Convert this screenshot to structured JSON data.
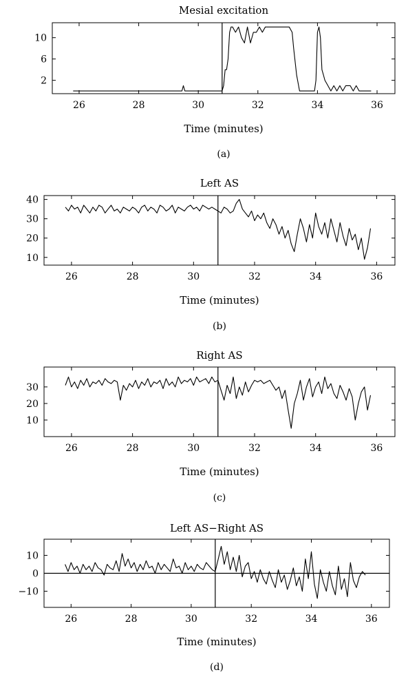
{
  "chart_data": [
    {
      "type": "line",
      "panel_label": "(a)",
      "title": "Mesial excitation",
      "xlabel": "Time (minutes)",
      "ylabel": "",
      "xlim": [
        25.1,
        36.6
      ],
      "ylim": [
        -0.5,
        12.8
      ],
      "xticks": [
        26,
        28,
        30,
        32,
        34,
        36
      ],
      "yticks": [
        2,
        6,
        10
      ],
      "vline": 30.8,
      "hline": null,
      "series": [
        {
          "x": [
            25.8,
            29.45,
            29.5,
            29.55,
            30.8,
            30.85,
            30.9,
            30.95,
            31.0,
            31.05,
            31.1,
            31.15,
            31.25,
            31.35,
            31.45,
            31.55,
            31.65,
            31.75,
            31.85,
            31.95,
            32.05,
            32.15,
            32.25,
            32.5,
            32.8,
            33.05,
            33.15,
            33.2,
            33.3,
            33.4,
            33.5,
            33.9,
            33.95,
            34.0,
            34.05,
            34.1,
            34.15,
            34.2,
            34.25,
            34.35,
            34.45,
            34.55,
            34.65,
            34.75,
            34.85,
            34.95,
            35.1,
            35.2,
            35.3,
            35.4,
            35.8
          ],
          "y": [
            0,
            0,
            1,
            0,
            0,
            1,
            4,
            4,
            6,
            11,
            12,
            12,
            11,
            12,
            10,
            9,
            12,
            9,
            11,
            11,
            12,
            11,
            12,
            12,
            12,
            12,
            11,
            8,
            3,
            0,
            0,
            0,
            2,
            11,
            12,
            10,
            4,
            3,
            2,
            1,
            0,
            1,
            0,
            1,
            0,
            1,
            1,
            0,
            1,
            0,
            0
          ]
        }
      ]
    },
    {
      "type": "line",
      "panel_label": "(b)",
      "title": "Left AS",
      "xlabel": "Time (minutes)",
      "ylabel": "",
      "xlim": [
        25.1,
        36.6
      ],
      "ylim": [
        6,
        42
      ],
      "xticks": [
        26,
        28,
        30,
        32,
        34,
        36
      ],
      "yticks": [
        10,
        20,
        30,
        40
      ],
      "vline": 30.8,
      "hline": null,
      "series": [
        {
          "x": [
            25.8,
            25.9,
            26.0,
            26.1,
            26.2,
            26.3,
            26.4,
            26.5,
            26.6,
            26.7,
            26.8,
            26.9,
            27.0,
            27.1,
            27.2,
            27.3,
            27.4,
            27.5,
            27.6,
            27.7,
            27.8,
            27.9,
            28.0,
            28.1,
            28.2,
            28.3,
            28.4,
            28.5,
            28.6,
            28.7,
            28.8,
            28.9,
            29.0,
            29.1,
            29.2,
            29.3,
            29.4,
            29.5,
            29.6,
            29.7,
            29.8,
            29.9,
            30.0,
            30.1,
            30.2,
            30.3,
            30.4,
            30.5,
            30.6,
            30.7,
            30.8,
            30.9,
            31.0,
            31.1,
            31.2,
            31.3,
            31.4,
            31.5,
            31.6,
            31.7,
            31.8,
            31.9,
            32.0,
            32.1,
            32.2,
            32.3,
            32.4,
            32.5,
            32.6,
            32.7,
            32.8,
            32.9,
            33.0,
            33.1,
            33.2,
            33.3,
            33.4,
            33.5,
            33.6,
            33.7,
            33.8,
            33.9,
            34.0,
            34.1,
            34.2,
            34.3,
            34.4,
            34.5,
            34.6,
            34.7,
            34.8,
            34.9,
            35.0,
            35.1,
            35.2,
            35.3,
            35.4,
            35.5,
            35.6,
            35.7,
            35.8
          ],
          "y": [
            36,
            34,
            37,
            35,
            36,
            33,
            37,
            35,
            33,
            36,
            34,
            37,
            36,
            33,
            35,
            37,
            34,
            35,
            33,
            36,
            35,
            34,
            36,
            35,
            33,
            36,
            37,
            34,
            36,
            35,
            33,
            37,
            36,
            34,
            35,
            37,
            33,
            36,
            35,
            34,
            36,
            37,
            35,
            36,
            34,
            37,
            36,
            35,
            36,
            35,
            34,
            33,
            36,
            35,
            33,
            34,
            38,
            40,
            35,
            33,
            31,
            34,
            29,
            32,
            30,
            33,
            28,
            25,
            30,
            27,
            22,
            26,
            20,
            24,
            17,
            13,
            22,
            30,
            25,
            18,
            27,
            20,
            33,
            26,
            22,
            28,
            20,
            30,
            24,
            18,
            28,
            21,
            16,
            25,
            19,
            22,
            14,
            20,
            9,
            15,
            25
          ]
        }
      ]
    },
    {
      "type": "line",
      "panel_label": "(c)",
      "title": "Right AS",
      "xlabel": "Time (minutes)",
      "ylabel": "",
      "xlim": [
        25.1,
        36.6
      ],
      "ylim": [
        0,
        42
      ],
      "xticks": [
        26,
        28,
        30,
        32,
        34,
        36
      ],
      "yticks": [
        10,
        20,
        30
      ],
      "vline": 30.8,
      "hline": null,
      "series": [
        {
          "x": [
            25.8,
            25.9,
            26.0,
            26.1,
            26.2,
            26.3,
            26.4,
            26.5,
            26.6,
            26.7,
            26.8,
            26.9,
            27.0,
            27.1,
            27.2,
            27.3,
            27.4,
            27.5,
            27.6,
            27.7,
            27.8,
            27.9,
            28.0,
            28.1,
            28.2,
            28.3,
            28.4,
            28.5,
            28.6,
            28.7,
            28.8,
            28.9,
            29.0,
            29.1,
            29.2,
            29.3,
            29.4,
            29.5,
            29.6,
            29.7,
            29.8,
            29.9,
            30.0,
            30.1,
            30.2,
            30.3,
            30.4,
            30.5,
            30.6,
            30.7,
            30.8,
            30.9,
            31.0,
            31.1,
            31.2,
            31.3,
            31.4,
            31.5,
            31.6,
            31.7,
            31.8,
            31.9,
            32.0,
            32.1,
            32.2,
            32.3,
            32.4,
            32.5,
            32.6,
            32.7,
            32.8,
            32.9,
            33.0,
            33.1,
            33.2,
            33.3,
            33.4,
            33.5,
            33.6,
            33.7,
            33.8,
            33.9,
            34.0,
            34.1,
            34.2,
            34.3,
            34.4,
            34.5,
            34.6,
            34.7,
            34.8,
            34.9,
            35.0,
            35.1,
            35.2,
            35.3,
            35.4,
            35.5,
            35.6,
            35.7,
            35.8
          ],
          "y": [
            31,
            36,
            30,
            33,
            29,
            34,
            31,
            35,
            30,
            33,
            32,
            34,
            31,
            35,
            33,
            32,
            34,
            33,
            22,
            31,
            28,
            32,
            30,
            34,
            29,
            33,
            31,
            35,
            30,
            33,
            32,
            34,
            29,
            35,
            31,
            33,
            30,
            36,
            32,
            34,
            33,
            35,
            31,
            36,
            33,
            34,
            35,
            32,
            36,
            33,
            34,
            28,
            22,
            31,
            26,
            36,
            23,
            30,
            25,
            33,
            27,
            31,
            34,
            33,
            34,
            32,
            33,
            34,
            31,
            28,
            30,
            23,
            28,
            16,
            5,
            20,
            26,
            34,
            22,
            30,
            35,
            24,
            30,
            33,
            26,
            36,
            29,
            32,
            26,
            23,
            31,
            27,
            22,
            29,
            24,
            10,
            20,
            27,
            30,
            16,
            25
          ]
        }
      ]
    },
    {
      "type": "line",
      "panel_label": "(d)",
      "title": "Left AS−Right AS",
      "xlabel": "Time (minutes)",
      "ylabel": "",
      "xlim": [
        25.1,
        36.6
      ],
      "ylim": [
        -19,
        19
      ],
      "xticks": [
        26,
        28,
        30,
        32,
        34,
        36
      ],
      "yticks": [
        -10,
        0,
        10
      ],
      "vline": 30.8,
      "hline": 0,
      "series": [
        {
          "x": [
            25.8,
            25.9,
            26.0,
            26.1,
            26.2,
            26.3,
            26.4,
            26.5,
            26.6,
            26.7,
            26.8,
            26.9,
            27.0,
            27.1,
            27.2,
            27.3,
            27.4,
            27.5,
            27.6,
            27.7,
            27.8,
            27.9,
            28.0,
            28.1,
            28.2,
            28.3,
            28.4,
            28.5,
            28.6,
            28.7,
            28.8,
            28.9,
            29.0,
            29.1,
            29.2,
            29.3,
            29.4,
            29.5,
            29.6,
            29.7,
            29.8,
            29.9,
            30.0,
            30.1,
            30.2,
            30.3,
            30.4,
            30.5,
            30.6,
            30.7,
            30.8,
            30.9,
            31.0,
            31.1,
            31.2,
            31.3,
            31.4,
            31.5,
            31.6,
            31.7,
            31.8,
            31.9,
            32.0,
            32.1,
            32.2,
            32.3,
            32.4,
            32.5,
            32.6,
            32.7,
            32.8,
            32.9,
            33.0,
            33.1,
            33.2,
            33.3,
            33.4,
            33.5,
            33.6,
            33.7,
            33.8,
            33.9,
            34.0,
            34.1,
            34.2,
            34.3,
            34.4,
            34.5,
            34.6,
            34.7,
            34.8,
            34.9,
            35.0,
            35.1,
            35.2,
            35.3,
            35.4,
            35.5,
            35.6,
            35.7,
            35.8
          ],
          "y": [
            5,
            1,
            6,
            2,
            4,
            0,
            5,
            2,
            4,
            1,
            6,
            3,
            2,
            -1,
            5,
            3,
            2,
            7,
            1,
            11,
            4,
            8,
            3,
            6,
            1,
            5,
            2,
            7,
            3,
            4,
            0,
            6,
            2,
            5,
            3,
            1,
            8,
            3,
            4,
            0,
            6,
            2,
            4,
            1,
            5,
            3,
            2,
            6,
            4,
            2,
            1,
            8,
            15,
            5,
            12,
            2,
            9,
            1,
            10,
            -2,
            4,
            6,
            -3,
            1,
            -5,
            2,
            -3,
            -6,
            1,
            -4,
            -8,
            2,
            -5,
            -1,
            -9,
            -4,
            3,
            -7,
            -2,
            -10,
            8,
            -3,
            12,
            -6,
            -14,
            2,
            -5,
            -10,
            1,
            -7,
            -12,
            4,
            -9,
            -3,
            -13,
            6,
            -4,
            -8,
            -2,
            1,
            -1
          ]
        }
      ]
    }
  ]
}
